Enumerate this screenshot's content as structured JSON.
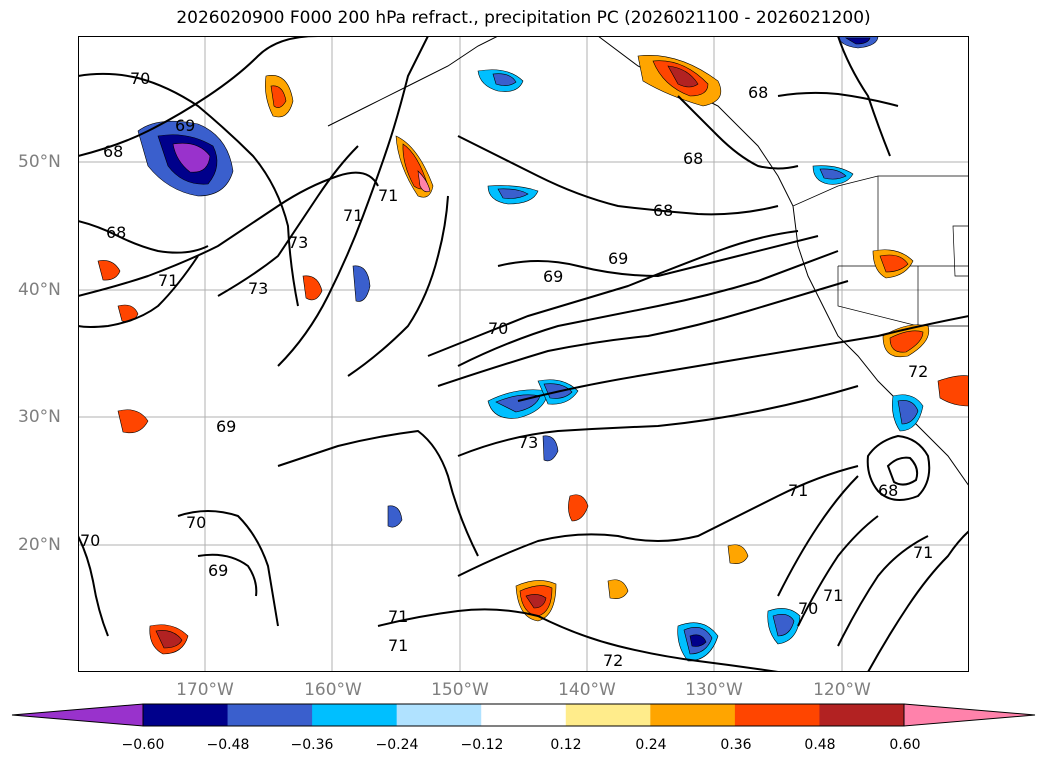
{
  "title": "2026020900 F000 200 hPa refract., precipitation PC (2026021100 - 2026021200)",
  "map": {
    "lat_labels": [
      "50°N",
      "40°N",
      "30°N",
      "20°N"
    ],
    "lon_labels": [
      "170°W",
      "160°W",
      "150°W",
      "140°W",
      "130°W",
      "120°W"
    ],
    "contour_labels": [
      "70",
      "69",
      "68",
      "68",
      "71",
      "73",
      "73",
      "71",
      "71",
      "69",
      "70",
      "73",
      "72",
      "71",
      "70",
      "71",
      "71",
      "69",
      "70",
      "69",
      "70",
      "71",
      "68",
      "68",
      "68",
      "68",
      "69",
      "71",
      "72"
    ],
    "colors": {
      "contour": "#000000",
      "grid": "#9e9e9e",
      "coast": "#000000"
    }
  },
  "colorbar": {
    "tick_labels": [
      "−0.60",
      "−0.48",
      "−0.36",
      "−0.24",
      "−0.12",
      "0.12",
      "0.24",
      "0.36",
      "0.48",
      "0.60"
    ],
    "colors": [
      "#9932cc",
      "#00008b",
      "#3a5fcd",
      "#00bfff",
      "#b0e2ff",
      "#ffffff",
      "#ffec8b",
      "#ffa500",
      "#ff4500",
      "#b22222",
      "#ff82ab"
    ]
  }
}
